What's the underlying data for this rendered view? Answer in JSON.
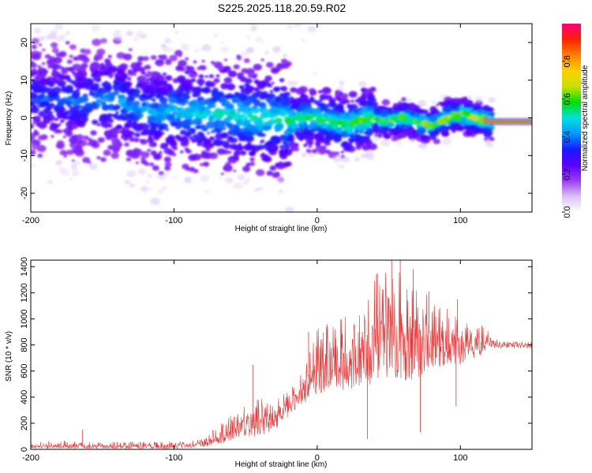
{
  "figure": {
    "title": "S225.2025.118.20.59.R02"
  },
  "chart_data": [
    {
      "type": "heatmap",
      "name": "spectrogram",
      "xlabel": "Height of straight line (km)",
      "ylabel": "Frequency (Hz)",
      "xlim": [
        -200,
        150
      ],
      "ylim": [
        -25,
        25
      ],
      "xticks": [
        -200,
        -100,
        0,
        100
      ],
      "yticks": [
        -20,
        -10,
        0,
        10,
        20
      ],
      "colorbar": {
        "label": "Normalized spectral amplitude",
        "range": [
          0,
          1
        ],
        "ticks": [
          0.0,
          0.2,
          0.4,
          0.6,
          0.8
        ],
        "colormap": [
          "#ffffff",
          "#d9c2f5",
          "#9a3cf0",
          "#5a00ff",
          "#1a1aff",
          "#0099ff",
          "#00e0e0",
          "#00e000",
          "#c8e000",
          "#ffd000",
          "#ff8000",
          "#ff2000",
          "#ff0080"
        ]
      },
      "ridge": {
        "x": [
          -200,
          -180,
          -160,
          -140,
          -130,
          -120,
          -110,
          -100,
          -80,
          -60,
          -40,
          -30,
          -20,
          -10,
          0,
          10,
          20,
          30,
          40,
          50,
          60,
          70,
          80,
          90,
          100,
          110,
          120,
          130,
          150
        ],
        "y": [
          5,
          5,
          4,
          5,
          3,
          2,
          1,
          2,
          1,
          1,
          0,
          0,
          -1,
          0,
          0,
          -1,
          -2,
          -1,
          0,
          -1,
          0,
          -1,
          -2,
          0,
          1,
          0,
          -1,
          -1,
          -1
        ]
      }
    },
    {
      "type": "line",
      "name": "snr",
      "xlabel": "Height of straight line (km)",
      "ylabel": "SNR (10 * v/v)",
      "xlim": [
        -200,
        150
      ],
      "ylim": [
        0,
        1450
      ],
      "xticks": [
        -200,
        -100,
        0,
        100
      ],
      "yticks": [
        0,
        200,
        400,
        600,
        800,
        1000,
        1200,
        1400
      ],
      "color": "#f03030",
      "envelope": {
        "x": [
          -200,
          -180,
          -160,
          -140,
          -120,
          -100,
          -90,
          -80,
          -70,
          -60,
          -50,
          -40,
          -30,
          -20,
          -10,
          0,
          10,
          20,
          30,
          40,
          50,
          60,
          70,
          80,
          90,
          100,
          110,
          120,
          125,
          150
        ],
        "low": [
          5,
          5,
          5,
          5,
          5,
          5,
          10,
          15,
          40,
          60,
          80,
          100,
          150,
          250,
          350,
          400,
          450,
          450,
          450,
          500,
          500,
          500,
          550,
          600,
          650,
          650,
          700,
          750,
          780,
          780
        ],
        "high": [
          50,
          70,
          60,
          60,
          60,
          60,
          60,
          80,
          180,
          270,
          350,
          400,
          380,
          450,
          600,
          950,
          1000,
          1050,
          1200,
          1350,
          1400,
          1400,
          1300,
          1150,
          1100,
          1000,
          950,
          950,
          850,
          850
        ]
      },
      "peaks": [
        {
          "x": -164,
          "y": 150
        },
        {
          "x": -45,
          "y": 650
        },
        {
          "x": -6,
          "y": 900
        },
        {
          "x": 42,
          "y": 1350
        },
        {
          "x": 52,
          "y": 1450
        },
        {
          "x": 58,
          "y": 1480
        },
        {
          "x": 67,
          "y": 1380
        },
        {
          "x": 78,
          "y": 1210
        },
        {
          "x": 98,
          "y": 1150
        },
        {
          "x": 35,
          "y": 80
        },
        {
          "x": 72,
          "y": 130
        },
        {
          "x": 97,
          "y": 330
        }
      ]
    }
  ]
}
